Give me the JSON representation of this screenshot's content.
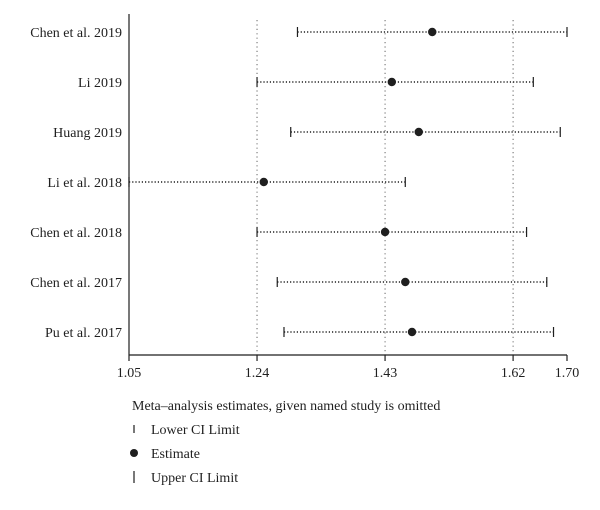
{
  "chart_data": {
    "type": "forest",
    "studies": [
      "Chen et al. 2019",
      "Li 2019",
      "Huang 2019",
      "Li et al. 2018",
      "Chen et al. 2018",
      "Chen et al. 2017",
      "Pu et al. 2017"
    ],
    "series": [
      {
        "name": "Estimate",
        "values": [
          1.5,
          1.44,
          1.48,
          1.25,
          1.43,
          1.46,
          1.47
        ]
      },
      {
        "name": "Lower CI Limit",
        "values": [
          1.3,
          1.24,
          1.29,
          1.05,
          1.24,
          1.27,
          1.28
        ]
      },
      {
        "name": "Upper CI Limit",
        "values": [
          1.7,
          1.65,
          1.69,
          1.46,
          1.64,
          1.67,
          1.68
        ]
      }
    ],
    "x_ticks": [
      "1.05",
      "1.24",
      "1.43",
      "1.62",
      "1.70"
    ],
    "reference_lines": [
      1.24,
      1.43,
      1.62
    ],
    "xlim": [
      1.05,
      1.7
    ],
    "grid": false,
    "legend_position": "bottom-left"
  },
  "legend": {
    "title": "Meta–analysis estimates, given named study is omitted",
    "items": [
      {
        "label": "Lower CI Limit",
        "symbol": "tick-small"
      },
      {
        "label": "Estimate",
        "symbol": "dot"
      },
      {
        "label": "Upper CI Limit",
        "symbol": "tick-large"
      }
    ]
  },
  "colors": {
    "ink": "#1f1f1f",
    "reference_line": "#666666"
  }
}
